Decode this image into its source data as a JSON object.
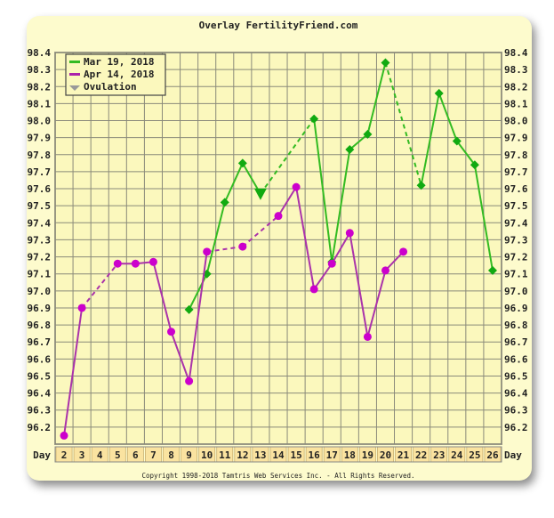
{
  "chart_data": {
    "type": "line",
    "title": "Overlay FertilityFriend.com",
    "xlabel": "Day",
    "ylim": [
      96.1,
      98.4
    ],
    "yticks": [
      "98.4",
      "98.3",
      "98.2",
      "98.1",
      "98.0",
      "97.9",
      "97.8",
      "97.7",
      "97.6",
      "97.5",
      "97.4",
      "97.3",
      "97.2",
      "97.1",
      "97.0",
      "96.9",
      "96.8",
      "96.7",
      "96.6",
      "96.5",
      "96.4",
      "96.3",
      "96.2"
    ],
    "x": [
      2,
      3,
      4,
      5,
      6,
      7,
      8,
      9,
      10,
      11,
      12,
      13,
      14,
      15,
      16,
      17,
      18,
      19,
      20,
      21,
      22,
      23,
      24,
      25,
      26
    ],
    "grid": true,
    "legend_placement": "top-left",
    "legend": [
      {
        "label": "Mar 19, 2018",
        "color": "#33bb22"
      },
      {
        "label": "Apr 14, 2018",
        "color": "#aa22aa"
      },
      {
        "label": "Ovulation",
        "color": "#999999"
      }
    ],
    "series": [
      {
        "name": "Mar 19, 2018",
        "color": "#33bb22",
        "marker_color": "#11aa11",
        "values": [
          null,
          null,
          null,
          null,
          null,
          null,
          null,
          96.89,
          97.1,
          97.52,
          97.75,
          97.57,
          null,
          null,
          98.01,
          97.17,
          97.83,
          97.92,
          98.34,
          null,
          97.62,
          98.16,
          97.88,
          97.74,
          97.12
        ],
        "ovulation_day": 13
      },
      {
        "name": "Apr 14, 2018",
        "color": "#aa33aa",
        "marker_color": "#cc00cc",
        "values": [
          96.15,
          96.9,
          null,
          97.16,
          97.16,
          97.17,
          96.76,
          96.47,
          97.23,
          null,
          97.26,
          null,
          97.44,
          97.61,
          97.01,
          97.16,
          97.34,
          96.73,
          97.12,
          97.23,
          null,
          null,
          null,
          null,
          null
        ]
      }
    ],
    "footer": "Copyright 1998-2018 Tamtris Web Services Inc. - All Rights Reserved."
  }
}
